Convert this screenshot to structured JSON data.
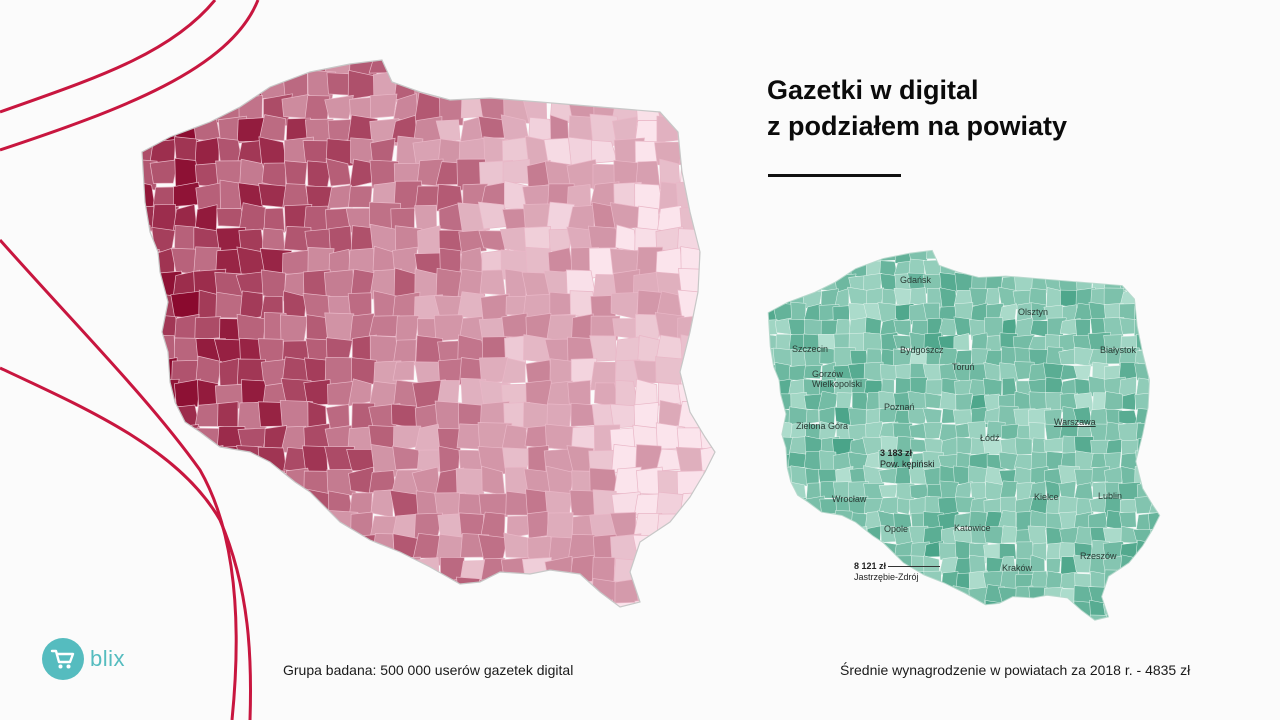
{
  "title": {
    "line1": "Gazetki w digital",
    "line2": "z podziałem na powiaty"
  },
  "colors": {
    "accent_red": "#c8163f",
    "pink_dark": "#8a0a2e",
    "pink_light": "#fbe4ec",
    "green_dark": "#1f8c6b",
    "green_light": "#cdeee2",
    "logo_teal": "#55bcbf"
  },
  "left_map": {
    "caption": "Grupa badana: 500 000 userów gazetek digital"
  },
  "right_map": {
    "caption": "Średnie wynagrodzenie w powiatach za 2018 r. - 4835 zł",
    "cities": [
      "Gdańsk",
      "Olsztyn",
      "Szczecin",
      "Bydgoszcz",
      "Białystok",
      "Toruń",
      "Gorzów Wielkopolski",
      "Poznań",
      "Warszawa",
      "Zielona Góra",
      "Łódź",
      "Wrocław",
      "Kielce",
      "Lublin",
      "Opole",
      "Katowice",
      "Kraków",
      "Rzeszów"
    ],
    "annotation_min": {
      "value": "3 183 zł",
      "label": "Pow. kępiński"
    },
    "annotation_max": {
      "value": "8 121 zł",
      "label": "Jastrzębie-Zdrój"
    }
  },
  "logo": {
    "text": "blix",
    "icon": "cart-icon"
  },
  "decoration": {
    "icon": "red-wave-lines"
  }
}
